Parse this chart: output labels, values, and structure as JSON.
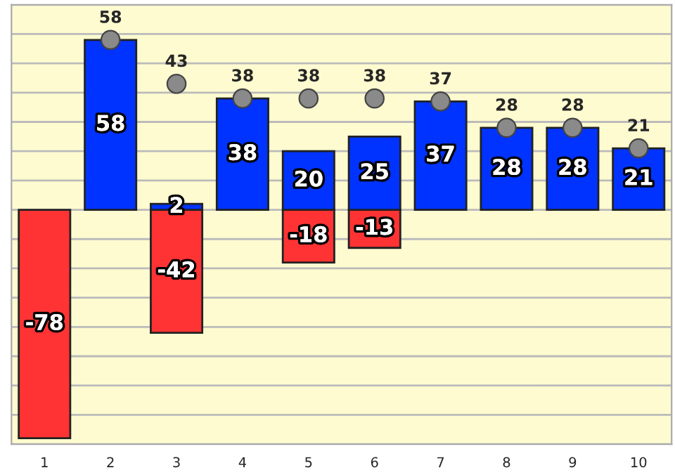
{
  "chart_data": {
    "type": "bar",
    "stacked": true,
    "categories": [
      "1",
      "2",
      "3",
      "4",
      "5",
      "6",
      "7",
      "8",
      "9",
      "10"
    ],
    "series": [
      {
        "color": "#ff3333",
        "values": [
          -78,
          null,
          -42,
          null,
          -18,
          -13,
          null,
          null,
          null,
          null
        ]
      },
      {
        "color": "#0033ff",
        "values": [
          null,
          58,
          2,
          38,
          20,
          25,
          37,
          28,
          28,
          21
        ]
      },
      {
        "type": "scatter",
        "color": "#8a8a8a",
        "values": [
          null,
          58,
          43,
          38,
          38,
          38,
          37,
          28,
          28,
          21
        ]
      }
    ],
    "ylim": [
      -80,
      70
    ],
    "yticks": [
      {
        "value": -80,
        "label": null
      },
      {
        "value": -70,
        "label": null
      },
      {
        "value": -60,
        "label": null
      },
      {
        "value": -50,
        "label": null
      },
      {
        "value": -40,
        "label": null
      },
      {
        "value": -30,
        "label": null
      },
      {
        "value": -20,
        "label": null
      },
      {
        "value": -10,
        "label": null
      },
      {
        "value": 0,
        "label": null
      },
      {
        "value": 10,
        "label": null
      },
      {
        "value": 20,
        "label": null
      },
      {
        "value": 30,
        "label": null
      },
      {
        "value": 40,
        "label": null
      },
      {
        "value": 50,
        "label": null
      },
      {
        "value": 60,
        "label": null
      },
      {
        "value": 70,
        "label": null
      }
    ],
    "grid": "y",
    "data_labels": true,
    "marker": "circle",
    "tick_labels": "x"
  }
}
